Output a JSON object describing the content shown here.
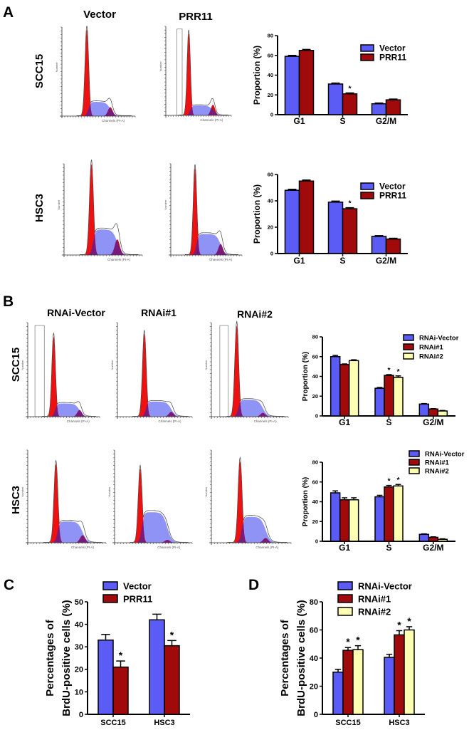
{
  "panels": {
    "A": {
      "letter": "A",
      "columns": [
        "Vector",
        "PRR11"
      ],
      "rows": [
        "SCC15",
        "HSC3"
      ]
    },
    "B": {
      "letter": "B",
      "columns": [
        "RNAi-Vector",
        "RNAi#1",
        "RNAi#2"
      ],
      "rows": [
        "SCC15",
        "HSC3"
      ]
    },
    "C": {
      "letter": "C"
    },
    "D": {
      "letter": "D"
    }
  },
  "histogram_axis": {
    "ylabel": "Number",
    "xlabel": "Channels (PI-A)"
  },
  "colors": {
    "vector": "#5a5cf5",
    "prr11": "#a10a0a",
    "rnai2": "#ffffb3",
    "g1_peak": "#ee1111",
    "s_phase": "#8f93f5",
    "g2_peak": "#7a1a7a"
  },
  "chart_data": [
    {
      "id": "A-SCC15",
      "type": "bar",
      "title": "",
      "xlabel": "",
      "ylabel": "Proportion (%)",
      "categories": [
        "G1",
        "S",
        "G2/M"
      ],
      "ylim": [
        0,
        80
      ],
      "yticks": [
        0,
        20,
        40,
        60,
        80
      ],
      "grid": false,
      "legend": "top-right",
      "series": [
        {
          "name": "Vector",
          "values": [
            59,
            31,
            11
          ],
          "errors": [
            1,
            1,
            0.8
          ],
          "annotations": [
            "",
            "",
            ""
          ]
        },
        {
          "name": "PRR11",
          "values": [
            65,
            21,
            15
          ],
          "errors": [
            1,
            1,
            0.8
          ],
          "annotations": [
            "",
            "*",
            ""
          ]
        }
      ]
    },
    {
      "id": "A-HSC3",
      "type": "bar",
      "title": "",
      "xlabel": "",
      "ylabel": "Proportion (%)",
      "categories": [
        "G1",
        "S",
        "G2/M"
      ],
      "ylim": [
        0,
        60
      ],
      "yticks": [
        0,
        20,
        40,
        60
      ],
      "grid": false,
      "legend": "top-right",
      "series": [
        {
          "name": "Vector",
          "values": [
            48,
            39,
            13
          ],
          "errors": [
            0.8,
            0.8,
            0.6
          ],
          "annotations": [
            "",
            "",
            ""
          ]
        },
        {
          "name": "PRR11",
          "values": [
            55,
            34,
            11
          ],
          "errors": [
            0.8,
            0.8,
            0.6
          ],
          "annotations": [
            "",
            "*",
            ""
          ]
        }
      ]
    },
    {
      "id": "B-SCC15",
      "type": "bar",
      "title": "",
      "xlabel": "",
      "ylabel": "Proportion (%)",
      "categories": [
        "G1",
        "S",
        "G2/M"
      ],
      "ylim": [
        0,
        80
      ],
      "yticks": [
        0,
        20,
        40,
        60,
        80
      ],
      "grid": false,
      "legend": "top-right",
      "series": [
        {
          "name": "RNAi-Vector",
          "values": [
            60,
            28,
            12
          ],
          "errors": [
            1.2,
            0.8,
            0.5
          ],
          "annotations": [
            "",
            "",
            ""
          ]
        },
        {
          "name": "RNAi#1",
          "values": [
            52,
            41,
            7
          ],
          "errors": [
            0.6,
            0.8,
            0.4
          ],
          "annotations": [
            "",
            "*",
            ""
          ]
        },
        {
          "name": "RNAi#2",
          "values": [
            56,
            39,
            5
          ],
          "errors": [
            0.8,
            1.5,
            0.5
          ],
          "annotations": [
            "",
            "*",
            ""
          ]
        }
      ]
    },
    {
      "id": "B-HSC3",
      "type": "bar",
      "title": "",
      "xlabel": "",
      "ylabel": "Proportion (%)",
      "categories": [
        "G1",
        "S",
        "G2/M"
      ],
      "ylim": [
        0,
        80
      ],
      "yticks": [
        0,
        20,
        40,
        60,
        80
      ],
      "grid": false,
      "legend": "top-right",
      "series": [
        {
          "name": "RNAi-Vector",
          "values": [
            49,
            45,
            7
          ],
          "errors": [
            2,
            1.5,
            0.5
          ],
          "annotations": [
            "",
            "",
            ""
          ]
        },
        {
          "name": "RNAi#1",
          "values": [
            42,
            55,
            4
          ],
          "errors": [
            2,
            1.5,
            0.5
          ],
          "annotations": [
            "",
            "*",
            ""
          ]
        },
        {
          "name": "RNAi#2",
          "values": [
            42,
            56,
            2
          ],
          "errors": [
            2,
            1.5,
            0.5
          ],
          "annotations": [
            "",
            "*",
            ""
          ]
        }
      ]
    },
    {
      "id": "C",
      "type": "bar",
      "title": "",
      "xlabel": "",
      "ylabel": "Percentages of BrdU-positive cells (%)",
      "ylabel_lines": [
        "Percentages of",
        "BrdU-positive cells (%)"
      ],
      "categories": [
        "SCC15",
        "HSC3"
      ],
      "ylim": [
        0,
        50
      ],
      "yticks": [
        0,
        10,
        20,
        30,
        40,
        50
      ],
      "grid": false,
      "legend": "top",
      "series": [
        {
          "name": "Vector",
          "values": [
            33,
            42
          ],
          "errors": [
            2.5,
            2.5
          ],
          "annotations": [
            "",
            ""
          ]
        },
        {
          "name": "PRR11",
          "values": [
            21,
            30.5
          ],
          "errors": [
            2.7,
            2.3
          ],
          "annotations": [
            "*",
            "*"
          ]
        }
      ]
    },
    {
      "id": "D",
      "type": "bar",
      "title": "",
      "xlabel": "",
      "ylabel": "Percentages of BrdU-positive cells (%)",
      "ylabel_lines": [
        "Percentages of",
        "BrdU-positive cells (%)"
      ],
      "categories": [
        "SCC15",
        "HSC3"
      ],
      "ylim": [
        0,
        80
      ],
      "yticks": [
        0,
        20,
        40,
        60,
        80
      ],
      "grid": false,
      "legend": "top",
      "series": [
        {
          "name": "RNAi-Vector",
          "values": [
            30,
            40.5
          ],
          "errors": [
            2,
            2.2
          ],
          "annotations": [
            "",
            ""
          ]
        },
        {
          "name": "RNAi#1",
          "values": [
            45.5,
            56.5
          ],
          "errors": [
            2,
            3
          ],
          "annotations": [
            "*",
            "*"
          ]
        },
        {
          "name": "RNAi#2",
          "values": [
            46,
            60
          ],
          "errors": [
            2.8,
            2.3
          ],
          "annotations": [
            "*",
            "*"
          ]
        }
      ]
    }
  ]
}
